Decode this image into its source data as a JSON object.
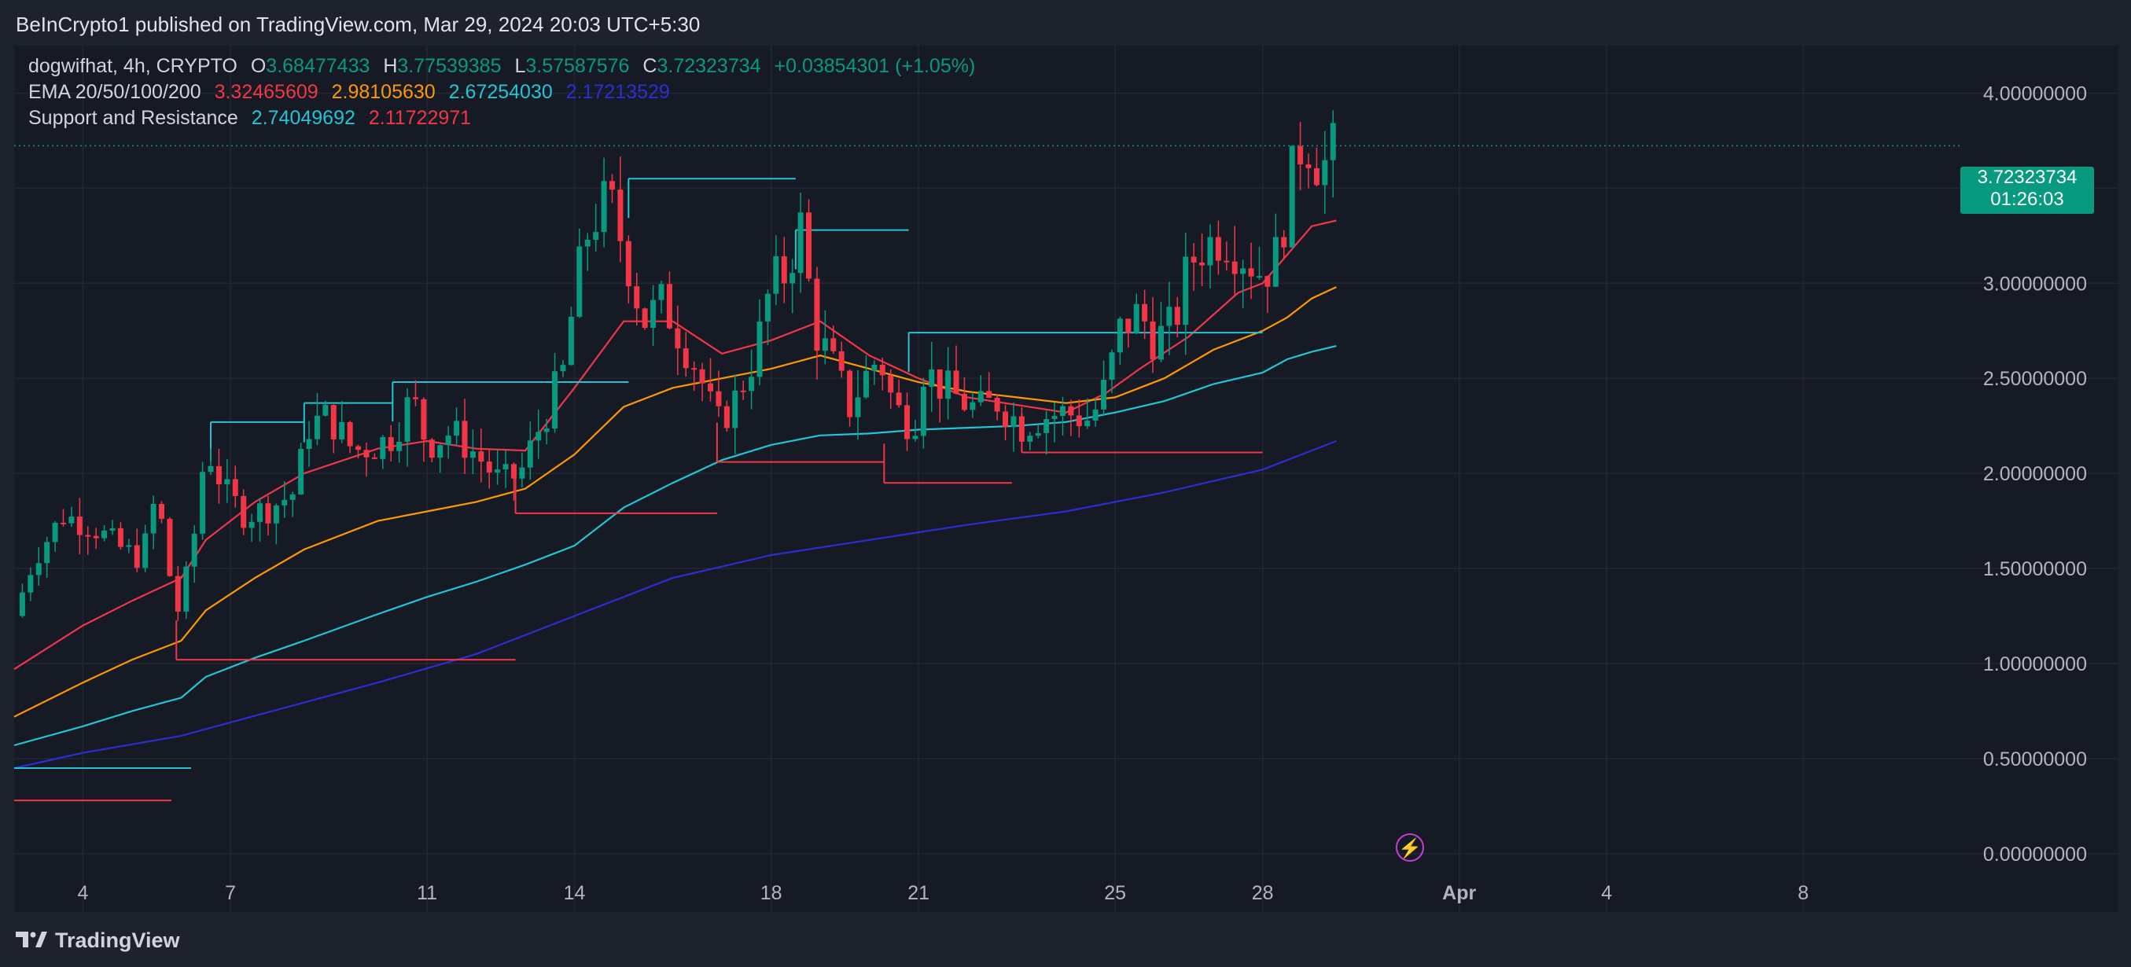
{
  "header": {
    "published": "BeInCrypto1 published on TradingView.com, Mar 29, 2024 20:03 UTC+5:30"
  },
  "legend": {
    "symbol": "dogwifhat, 4h, CRYPTO",
    "o_label": "O",
    "o_value": "3.68477433",
    "h_label": "H",
    "h_value": "3.77539385",
    "l_label": "L",
    "l_value": "3.57587576",
    "c_label": "C",
    "c_value": "3.72323734",
    "change": "+0.03854301 (+1.05%)",
    "ema_label": "EMA 20/50/100/200",
    "ema_values": [
      "3.32465609",
      "2.98105630",
      "2.67254030",
      "2.17213529"
    ],
    "sr_label": "Support and Resistance",
    "sr_values": [
      "2.74049692",
      "2.11722971"
    ]
  },
  "price_label": {
    "price": "3.72323734",
    "countdown": "01:26:03"
  },
  "footer": {
    "brand": "TradingView"
  },
  "colors": {
    "up": "#089981",
    "down": "#f23645",
    "ema20": "#f23645",
    "ema50": "#ff9800",
    "ema100": "#22c4d6",
    "ema200": "#2a2fd4",
    "resistance": "#22c4d6",
    "support": "#f23645",
    "bg": "#161a25"
  },
  "chart_data": {
    "type": "candlestick",
    "y_ticks": [
      "4.00000000",
      "3.50000000",
      "3.00000000",
      "2.50000000",
      "2.00000000",
      "1.50000000",
      "1.00000000",
      "0.50000000",
      "0.00000000"
    ],
    "ylim": [
      -0.1,
      4.25
    ],
    "x_ticks": [
      {
        "label": "4",
        "day": 4
      },
      {
        "label": "7",
        "day": 7
      },
      {
        "label": "11",
        "day": 11
      },
      {
        "label": "14",
        "day": 14
      },
      {
        "label": "18",
        "day": 18
      },
      {
        "label": "21",
        "day": 21
      },
      {
        "label": "25",
        "day": 25
      },
      {
        "label": "28",
        "day": 28
      },
      {
        "label": "Apr",
        "day": 32
      },
      {
        "label": "4",
        "day": 35
      },
      {
        "label": "8",
        "day": 39
      }
    ],
    "xlim": [
      2.6,
      40.9
    ],
    "candle_anchors": [
      [
        2.6,
        1.25
      ],
      [
        3.0,
        1.55
      ],
      [
        3.6,
        1.78
      ],
      [
        4.2,
        1.72
      ],
      [
        4.8,
        1.6
      ],
      [
        5.2,
        1.55
      ],
      [
        5.5,
        1.9
      ],
      [
        5.9,
        1.25
      ],
      [
        6.2,
        1.55
      ],
      [
        6.5,
        2.15
      ],
      [
        6.9,
        1.9
      ],
      [
        7.3,
        1.78
      ],
      [
        7.8,
        1.82
      ],
      [
        8.3,
        1.9
      ],
      [
        8.6,
        2.25
      ],
      [
        9.0,
        2.3
      ],
      [
        9.5,
        2.12
      ],
      [
        10.0,
        2.15
      ],
      [
        10.3,
        2.2
      ],
      [
        10.7,
        2.4
      ],
      [
        11.0,
        2.15
      ],
      [
        11.5,
        2.22
      ],
      [
        12.0,
        2.1
      ],
      [
        12.5,
        1.95
      ],
      [
        12.9,
        2.0
      ],
      [
        13.3,
        2.25
      ],
      [
        13.8,
        2.55
      ],
      [
        14.0,
        2.95
      ],
      [
        14.3,
        3.3
      ],
      [
        14.7,
        3.45
      ],
      [
        15.1,
        3.1
      ],
      [
        15.4,
        2.8
      ],
      [
        15.8,
        2.9
      ],
      [
        16.1,
        2.75
      ],
      [
        16.5,
        2.55
      ],
      [
        16.9,
        2.25
      ],
      [
        17.3,
        2.4
      ],
      [
        17.7,
        2.65
      ],
      [
        18.0,
        3.0
      ],
      [
        18.3,
        3.05
      ],
      [
        18.6,
        3.3
      ],
      [
        18.9,
        2.75
      ],
      [
        19.2,
        2.6
      ],
      [
        19.6,
        2.35
      ],
      [
        19.9,
        2.5
      ],
      [
        20.2,
        2.62
      ],
      [
        20.5,
        2.35
      ],
      [
        20.9,
        2.25
      ],
      [
        21.1,
        2.55
      ],
      [
        21.5,
        2.45
      ],
      [
        21.9,
        2.38
      ],
      [
        22.2,
        2.33
      ],
      [
        22.6,
        2.38
      ],
      [
        23.1,
        2.25
      ],
      [
        23.5,
        2.3
      ],
      [
        24.0,
        2.32
      ],
      [
        24.5,
        2.28
      ],
      [
        24.8,
        2.45
      ],
      [
        25.1,
        2.75
      ],
      [
        25.5,
        2.85
      ],
      [
        25.8,
        2.7
      ],
      [
        26.2,
        2.78
      ],
      [
        26.5,
        3.1
      ],
      [
        26.8,
        3.2
      ],
      [
        27.2,
        3.25
      ],
      [
        27.6,
        3.15
      ],
      [
        28.0,
        3.05
      ],
      [
        28.3,
        3.15
      ],
      [
        28.7,
        3.7
      ],
      [
        28.9,
        3.75
      ],
      [
        29.2,
        3.6
      ],
      [
        29.5,
        3.72
      ]
    ],
    "series": [
      {
        "name": "EMA 20",
        "points": [
          [
            2.6,
            0.97
          ],
          [
            4,
            1.2
          ],
          [
            5,
            1.33
          ],
          [
            6,
            1.45
          ],
          [
            6.5,
            1.65
          ],
          [
            7.5,
            1.85
          ],
          [
            8.5,
            2.0
          ],
          [
            10,
            2.13
          ],
          [
            11,
            2.17
          ],
          [
            12,
            2.13
          ],
          [
            13,
            2.12
          ],
          [
            14,
            2.45
          ],
          [
            15,
            2.8
          ],
          [
            16,
            2.8
          ],
          [
            17,
            2.63
          ],
          [
            18,
            2.7
          ],
          [
            19,
            2.8
          ],
          [
            20,
            2.62
          ],
          [
            21,
            2.5
          ],
          [
            22,
            2.4
          ],
          [
            23,
            2.36
          ],
          [
            24,
            2.32
          ],
          [
            24.8,
            2.42
          ],
          [
            25.5,
            2.55
          ],
          [
            26.5,
            2.72
          ],
          [
            27.5,
            2.95
          ],
          [
            28,
            3.0
          ],
          [
            28.5,
            3.15
          ],
          [
            29,
            3.3
          ],
          [
            29.5,
            3.33
          ]
        ]
      },
      {
        "name": "EMA 50",
        "points": [
          [
            2.6,
            0.72
          ],
          [
            4,
            0.9
          ],
          [
            5,
            1.02
          ],
          [
            6,
            1.12
          ],
          [
            6.5,
            1.28
          ],
          [
            7.5,
            1.45
          ],
          [
            8.5,
            1.6
          ],
          [
            10,
            1.75
          ],
          [
            11,
            1.8
          ],
          [
            12,
            1.85
          ],
          [
            13,
            1.92
          ],
          [
            14,
            2.1
          ],
          [
            15,
            2.35
          ],
          [
            16,
            2.45
          ],
          [
            17,
            2.5
          ],
          [
            18,
            2.55
          ],
          [
            19,
            2.62
          ],
          [
            20,
            2.55
          ],
          [
            21,
            2.48
          ],
          [
            22,
            2.43
          ],
          [
            23,
            2.4
          ],
          [
            24,
            2.37
          ],
          [
            25,
            2.4
          ],
          [
            26,
            2.5
          ],
          [
            27,
            2.65
          ],
          [
            28,
            2.75
          ],
          [
            28.5,
            2.82
          ],
          [
            29,
            2.92
          ],
          [
            29.5,
            2.98
          ]
        ]
      },
      {
        "name": "EMA 100",
        "points": [
          [
            2.6,
            0.57
          ],
          [
            4,
            0.67
          ],
          [
            5,
            0.75
          ],
          [
            6,
            0.82
          ],
          [
            6.5,
            0.93
          ],
          [
            7.5,
            1.03
          ],
          [
            8.5,
            1.12
          ],
          [
            10,
            1.26
          ],
          [
            11,
            1.35
          ],
          [
            12,
            1.43
          ],
          [
            13,
            1.52
          ],
          [
            14,
            1.62
          ],
          [
            15,
            1.82
          ],
          [
            16,
            1.95
          ],
          [
            17,
            2.07
          ],
          [
            18,
            2.15
          ],
          [
            19,
            2.2
          ],
          [
            20,
            2.21
          ],
          [
            21,
            2.23
          ],
          [
            22,
            2.24
          ],
          [
            23,
            2.25
          ],
          [
            24,
            2.27
          ],
          [
            25,
            2.32
          ],
          [
            26,
            2.38
          ],
          [
            27,
            2.47
          ],
          [
            28,
            2.53
          ],
          [
            28.5,
            2.6
          ],
          [
            29,
            2.64
          ],
          [
            29.5,
            2.67
          ]
        ]
      },
      {
        "name": "EMA 200",
        "points": [
          [
            2.6,
            0.45
          ],
          [
            4,
            0.53
          ],
          [
            6,
            0.62
          ],
          [
            8,
            0.76
          ],
          [
            10,
            0.9
          ],
          [
            12,
            1.05
          ],
          [
            14,
            1.25
          ],
          [
            16,
            1.45
          ],
          [
            18,
            1.57
          ],
          [
            20,
            1.65
          ],
          [
            22,
            1.73
          ],
          [
            24,
            1.8
          ],
          [
            26,
            1.9
          ],
          [
            28,
            2.02
          ],
          [
            29.5,
            2.17
          ]
        ]
      }
    ],
    "resistance_lines": [
      {
        "x": [
          2.6,
          6.2
        ],
        "y": 0.45
      },
      {
        "x": [
          6.6,
          8.5
        ],
        "y": 2.27
      },
      {
        "x": [
          8.5,
          10.3
        ],
        "y": 2.37
      },
      {
        "x": [
          10.3,
          15.1
        ],
        "y": 2.48
      },
      {
        "x": [
          15.1,
          18.5
        ],
        "y": 3.55
      },
      {
        "x": [
          18.5,
          20.8
        ],
        "y": 3.28
      },
      {
        "x": [
          20.8,
          28.0
        ],
        "y": 2.74
      }
    ],
    "support_lines": [
      {
        "x": [
          2.6,
          5.8
        ],
        "y": 0.28
      },
      {
        "x": [
          5.9,
          12.8
        ],
        "y": 1.02
      },
      {
        "x": [
          12.8,
          16.9
        ],
        "y": 1.79
      },
      {
        "x": [
          16.9,
          20.3
        ],
        "y": 2.06
      },
      {
        "x": [
          20.3,
          22.9
        ],
        "y": 1.95
      },
      {
        "x": [
          23.1,
          28.0
        ],
        "y": 2.11
      }
    ],
    "last_price": 3.72323734
  }
}
